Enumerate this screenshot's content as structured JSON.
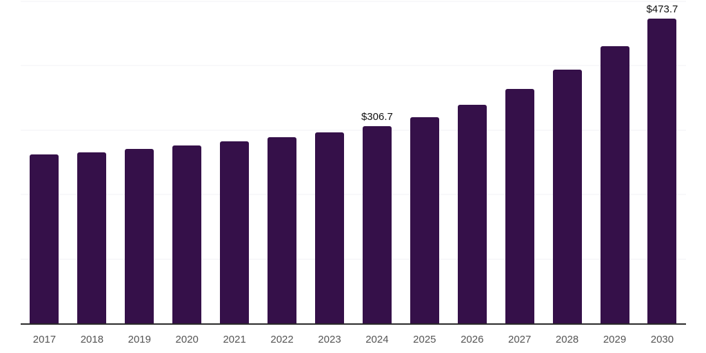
{
  "chart_data": {
    "type": "bar",
    "title": "",
    "xlabel": "",
    "ylabel": "",
    "legend": "none",
    "grid": "horizontal",
    "categories": [
      "2017",
      "2018",
      "2019",
      "2020",
      "2021",
      "2022",
      "2023",
      "2024",
      "2025",
      "2026",
      "2027",
      "2028",
      "2029",
      "2030"
    ],
    "values": [
      262.1,
      265.9,
      271.2,
      276.5,
      283.0,
      289.2,
      296.2,
      306.7,
      320.1,
      339.0,
      364.0,
      393.5,
      430.0,
      473.7
    ],
    "value_labels": [
      "",
      "",
      "",
      "",
      "",
      "",
      "",
      "$306.7",
      "",
      "",
      "",
      "",
      "",
      "$473.7"
    ],
    "ylim": [
      0,
      500
    ],
    "grid_step": 100,
    "bar_color": "#351049",
    "axis_line_color": "#2a2a2a",
    "gridline_color": "#f2f2f4",
    "tick_label_color": "#545454",
    "value_label_color": "#111111",
    "background_color": "#ffffff"
  }
}
